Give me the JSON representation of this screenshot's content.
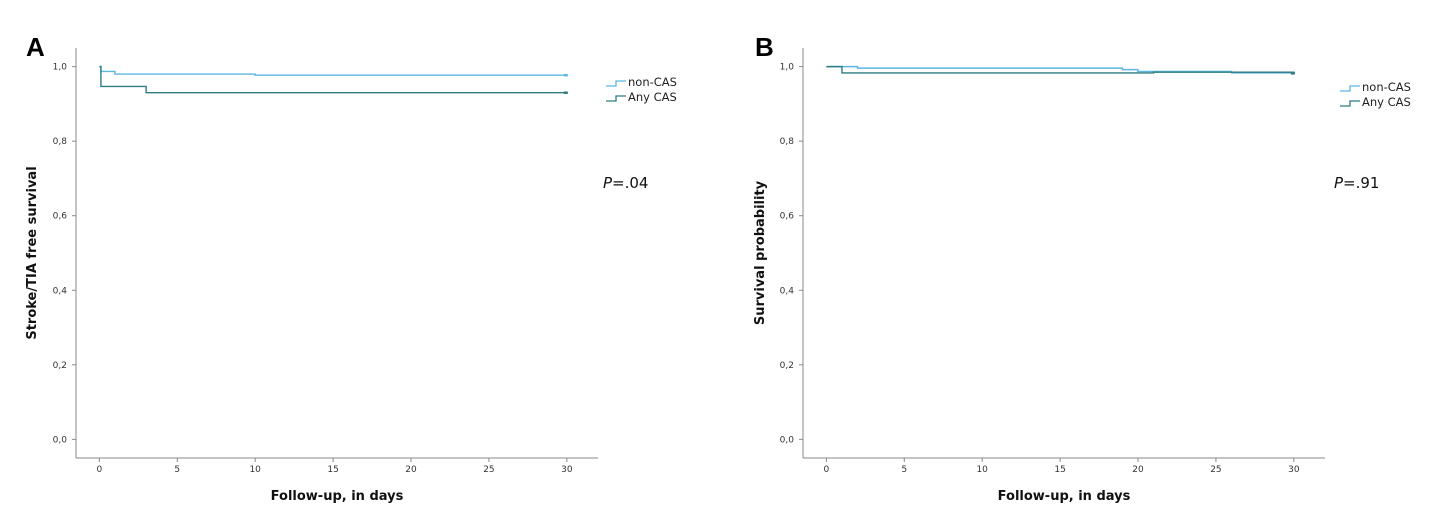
{
  "colors": {
    "series_0": "#5bb7e3",
    "series_1": "#2e7d80",
    "axis": "#888888"
  },
  "chart_data": [
    {
      "panel": "A",
      "type": "line",
      "step": true,
      "title": "",
      "xlabel": "Follow-up, in days",
      "ylabel": "Stroke/TIA free survival",
      "xlim": [
        -1.5,
        32
      ],
      "ylim": [
        -0.05,
        1.05
      ],
      "xticks": [
        0,
        5,
        10,
        15,
        20,
        25,
        30
      ],
      "xtick_labels": [
        "0",
        "5",
        "10",
        "15",
        "20",
        "25",
        "30"
      ],
      "yticks": [
        0,
        0.2,
        0.4,
        0.6,
        0.8,
        1.0
      ],
      "ytick_labels": [
        "0,0",
        "0,2",
        "0,4",
        "0,6",
        "0,8",
        "1,0"
      ],
      "annotation": {
        "prefix": "P",
        "text": "=.04"
      },
      "legend": "top-right",
      "series": [
        {
          "name": "non-CAS",
          "x": [
            0,
            0.1,
            1,
            10,
            30
          ],
          "y": [
            1.0,
            0.987,
            0.98,
            0.977,
            0.977
          ]
        },
        {
          "name": "Any CAS",
          "x": [
            0,
            0.1,
            3,
            30
          ],
          "y": [
            1.0,
            0.947,
            0.93,
            0.93
          ]
        }
      ]
    },
    {
      "panel": "B",
      "type": "line",
      "step": true,
      "title": "",
      "xlabel": "Follow-up, in days",
      "ylabel": "Survival probability",
      "xlim": [
        -1.5,
        32
      ],
      "ylim": [
        -0.05,
        1.05
      ],
      "xticks": [
        0,
        5,
        10,
        15,
        20,
        25,
        30
      ],
      "xtick_labels": [
        "0",
        "5",
        "10",
        "15",
        "20",
        "25",
        "30"
      ],
      "yticks": [
        0,
        0.2,
        0.4,
        0.6,
        0.8,
        1.0
      ],
      "ytick_labels": [
        "0,0",
        "0,2",
        "0,4",
        "0,6",
        "0,8",
        "1,0"
      ],
      "annotation": {
        "prefix": "P",
        "text": "=.91"
      },
      "legend": "top-right",
      "series": [
        {
          "name": "non-CAS",
          "x": [
            0,
            2,
            19,
            20,
            26,
            30
          ],
          "y": [
            1.0,
            0.996,
            0.992,
            0.987,
            0.983,
            0.983
          ]
        },
        {
          "name": "Any CAS",
          "x": [
            0,
            1,
            21,
            30
          ],
          "y": [
            1.0,
            0.983,
            0.985,
            0.982
          ]
        }
      ]
    }
  ]
}
